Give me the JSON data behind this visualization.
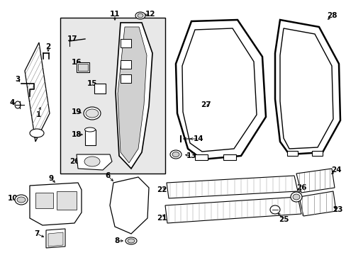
{
  "bg_color": "#ffffff",
  "line_color": "#000000",
  "box_bg": "#e8e8e8",
  "fig_width": 4.89,
  "fig_height": 3.6,
  "dpi": 100
}
